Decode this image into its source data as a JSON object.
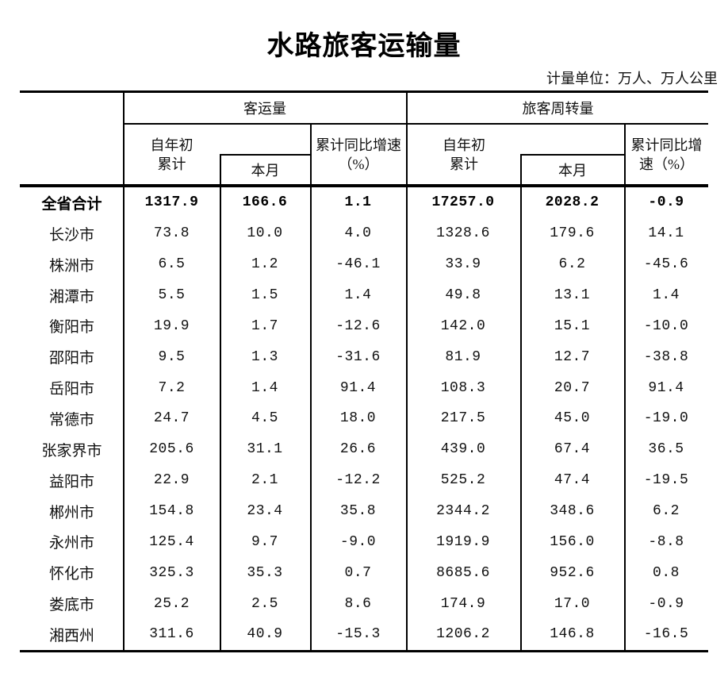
{
  "page": {
    "title": "水路旅客运输量",
    "unit_note": "计量单位：万人、万人公里"
  },
  "table": {
    "groups": [
      {
        "label": "客运量"
      },
      {
        "label": "旅客周转量"
      }
    ],
    "headers": {
      "ytd_line1": "自年初",
      "ytd_line2": "累计",
      "month": "本月",
      "growth_a_line1": "累计同比增速",
      "growth_a_line2": "（%）",
      "growth_b_line1": "累计同比增",
      "growth_b_line2": "速（%）"
    },
    "columns": [
      "自年初累计",
      "本月",
      "累计同比增速（%）",
      "自年初累计",
      "本月",
      "累计同比增速（%）"
    ],
    "rows": [
      {
        "name": "全省合计",
        "bold": true,
        "values": [
          "1317.9",
          "166.6",
          "1.1",
          "17257.0",
          "2028.2",
          "-0.9"
        ]
      },
      {
        "name": "长沙市",
        "bold": false,
        "values": [
          "73.8",
          "10.0",
          "4.0",
          "1328.6",
          "179.6",
          "14.1"
        ]
      },
      {
        "name": "株洲市",
        "bold": false,
        "values": [
          "6.5",
          "1.2",
          "-46.1",
          "33.9",
          "6.2",
          "-45.6"
        ]
      },
      {
        "name": "湘潭市",
        "bold": false,
        "values": [
          "5.5",
          "1.5",
          "1.4",
          "49.8",
          "13.1",
          "1.4"
        ]
      },
      {
        "name": "衡阳市",
        "bold": false,
        "values": [
          "19.9",
          "1.7",
          "-12.6",
          "142.0",
          "15.1",
          "-10.0"
        ]
      },
      {
        "name": "邵阳市",
        "bold": false,
        "values": [
          "9.5",
          "1.3",
          "-31.6",
          "81.9",
          "12.7",
          "-38.8"
        ]
      },
      {
        "name": "岳阳市",
        "bold": false,
        "values": [
          "7.2",
          "1.4",
          "91.4",
          "108.3",
          "20.7",
          "91.4"
        ]
      },
      {
        "name": "常德市",
        "bold": false,
        "values": [
          "24.7",
          "4.5",
          "18.0",
          "217.5",
          "45.0",
          "-19.0"
        ]
      },
      {
        "name": "张家界市",
        "bold": false,
        "values": [
          "205.6",
          "31.1",
          "26.6",
          "439.0",
          "67.4",
          "36.5"
        ]
      },
      {
        "name": "益阳市",
        "bold": false,
        "values": [
          "22.9",
          "2.1",
          "-12.2",
          "525.2",
          "47.4",
          "-19.5"
        ]
      },
      {
        "name": "郴州市",
        "bold": false,
        "values": [
          "154.8",
          "23.4",
          "35.8",
          "2344.2",
          "348.6",
          "6.2"
        ]
      },
      {
        "name": "永州市",
        "bold": false,
        "values": [
          "125.4",
          "9.7",
          "-9.0",
          "1919.9",
          "156.0",
          "-8.8"
        ]
      },
      {
        "name": "怀化市",
        "bold": false,
        "values": [
          "325.3",
          "35.3",
          "0.7",
          "8685.6",
          "952.6",
          "0.8"
        ]
      },
      {
        "name": "娄底市",
        "bold": false,
        "values": [
          "25.2",
          "2.5",
          "8.6",
          "174.9",
          "17.0",
          "-0.9"
        ]
      },
      {
        "name": "湘西州",
        "bold": false,
        "values": [
          "311.6",
          "40.9",
          "-15.3",
          "1206.2",
          "146.8",
          "-16.5"
        ]
      }
    ]
  }
}
